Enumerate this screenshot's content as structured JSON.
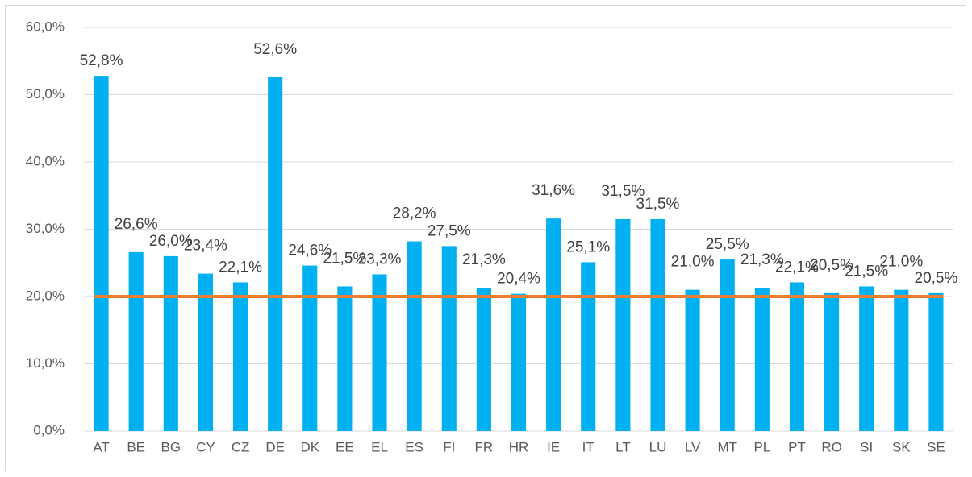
{
  "chart_data": {
    "type": "bar",
    "categories": [
      "AT",
      "BE",
      "BG",
      "CY",
      "CZ",
      "DE",
      "DK",
      "EE",
      "EL",
      "ES",
      "FI",
      "FR",
      "HR",
      "IE",
      "IT",
      "LT",
      "LU",
      "LV",
      "MT",
      "PL",
      "PT",
      "RO",
      "SI",
      "SK",
      "SE"
    ],
    "values": [
      52.8,
      26.6,
      26.0,
      23.4,
      22.1,
      52.6,
      24.6,
      21.5,
      23.3,
      28.2,
      27.5,
      21.3,
      20.4,
      31.6,
      25.1,
      31.5,
      31.5,
      21.0,
      25.5,
      21.3,
      22.1,
      20.5,
      21.5,
      21.0,
      20.5
    ],
    "value_labels": [
      "52,8%",
      "26,6%",
      "26,0%",
      "23,4%",
      "22,1%",
      "52,6%",
      "24,6%",
      "21,5%",
      "23,3%",
      "28,2%",
      "27,5%",
      "21,3%",
      "20,4%",
      "31,6%",
      "25,1%",
      "31,5%",
      "31,5%",
      "21,0%",
      "25,5%",
      "21,3%",
      "22,1%",
      "20,5%",
      "21,5%",
      "21,0%",
      "20,5%"
    ],
    "color": "#00b0f0",
    "reference_line": {
      "value": 20,
      "color": "#ed7d31"
    },
    "ylim": [
      0,
      60
    ],
    "yticks": [
      {
        "value": 0,
        "label": "0,0%"
      },
      {
        "value": 10,
        "label": "10,0%"
      },
      {
        "value": 20,
        "label": "20,0%"
      },
      {
        "value": 30,
        "label": "30,0%"
      },
      {
        "value": 40,
        "label": "40,0%"
      },
      {
        "value": 50,
        "label": "50,0%"
      },
      {
        "value": 60,
        "label": "60,0%"
      }
    ],
    "grid": true
  }
}
